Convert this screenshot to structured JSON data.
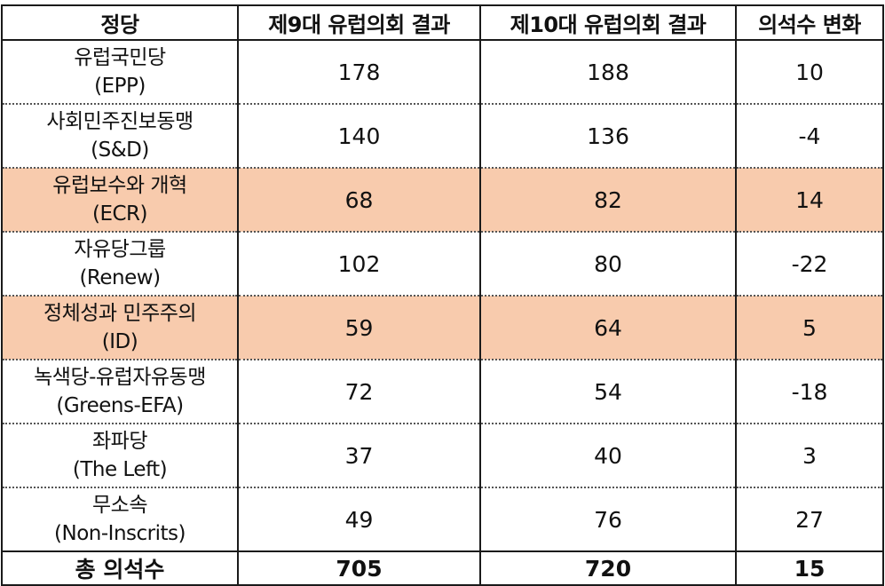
{
  "highlight_color": "#f8cbad",
  "header": {
    "party": "정당",
    "term9": "제9대 유럽의회 결과",
    "term10": "제10대 유럽의회 결과",
    "change": "의석수 변화"
  },
  "rows": [
    {
      "name": "유럽국민당",
      "abbr": "(EPP)",
      "term9": "178",
      "term10": "188",
      "change": "10"
    },
    {
      "name": "사회민주진보동맹",
      "abbr": "(S&D)",
      "term9": "140",
      "term10": "136",
      "change": "-4"
    },
    {
      "name": "유럽보수와 개혁",
      "abbr": "(ECR)",
      "term9": "68",
      "term10": "82",
      "change": "14"
    },
    {
      "name": "자유당그룹",
      "abbr": "(Renew)",
      "term9": "102",
      "term10": "80",
      "change": "-22"
    },
    {
      "name": "정체성과 민주주의",
      "abbr": "(ID)",
      "term9": "59",
      "term10": "64",
      "change": "5"
    },
    {
      "name": "녹색당-유럽자유동맹",
      "abbr": "(Greens-EFA)",
      "term9": "72",
      "term10": "54",
      "change": "-18"
    },
    {
      "name": "좌파당",
      "abbr": "(The Left)",
      "term9": "37",
      "term10": "40",
      "change": "3"
    },
    {
      "name": "무소속",
      "abbr": "(Non-Inscrits)",
      "term9": "49",
      "term10": "76",
      "change": "27"
    }
  ],
  "total": {
    "label": "총 의석수",
    "term9": "705",
    "term10": "720",
    "change": "15"
  }
}
